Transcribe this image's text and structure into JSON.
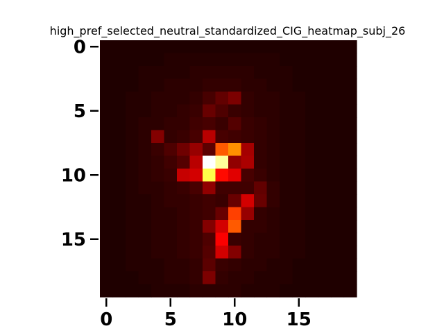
{
  "chart_data": {
    "type": "heatmap",
    "title": "high_pref_selected_neutral_standardized_CIG_heatmap_subj_26",
    "xlabel": "",
    "ylabel": "",
    "colormap": "hot",
    "vmin": 0,
    "vmax": 1,
    "xlim": [
      -0.5,
      19.5
    ],
    "ylim": [
      19.5,
      -0.5
    ],
    "x_ticks": [
      0,
      5,
      10,
      15
    ],
    "y_ticks": [
      0,
      5,
      10,
      15
    ],
    "rows": 20,
    "cols": 20,
    "background_value": 0.04,
    "values": [
      [
        0.03,
        0.03,
        0.03,
        0.03,
        0.03,
        0.03,
        0.03,
        0.03,
        0.03,
        0.03,
        0.03,
        0.03,
        0.03,
        0.03,
        0.03,
        0.03,
        0.03,
        0.03,
        0.03,
        0.03
      ],
      [
        0.03,
        0.03,
        0.03,
        0.03,
        0.03,
        0.04,
        0.04,
        0.04,
        0.04,
        0.04,
        0.04,
        0.04,
        0.04,
        0.04,
        0.03,
        0.03,
        0.03,
        0.03,
        0.03,
        0.03
      ],
      [
        0.03,
        0.03,
        0.03,
        0.04,
        0.04,
        0.04,
        0.04,
        0.05,
        0.05,
        0.05,
        0.05,
        0.05,
        0.04,
        0.04,
        0.04,
        0.03,
        0.03,
        0.03,
        0.03,
        0.03
      ],
      [
        0.03,
        0.03,
        0.03,
        0.04,
        0.04,
        0.05,
        0.05,
        0.05,
        0.06,
        0.06,
        0.06,
        0.05,
        0.05,
        0.04,
        0.04,
        0.03,
        0.03,
        0.03,
        0.03,
        0.03
      ],
      [
        0.03,
        0.03,
        0.04,
        0.04,
        0.05,
        0.05,
        0.05,
        0.06,
        0.09,
        0.13,
        0.17,
        0.06,
        0.05,
        0.05,
        0.04,
        0.04,
        0.03,
        0.03,
        0.03,
        0.03
      ],
      [
        0.03,
        0.03,
        0.04,
        0.04,
        0.05,
        0.05,
        0.06,
        0.07,
        0.14,
        0.1,
        0.07,
        0.06,
        0.05,
        0.05,
        0.04,
        0.04,
        0.03,
        0.03,
        0.03,
        0.03
      ],
      [
        0.03,
        0.03,
        0.04,
        0.05,
        0.05,
        0.06,
        0.06,
        0.08,
        0.09,
        0.07,
        0.11,
        0.07,
        0.06,
        0.05,
        0.04,
        0.04,
        0.03,
        0.03,
        0.03,
        0.03
      ],
      [
        0.03,
        0.03,
        0.04,
        0.05,
        0.18,
        0.06,
        0.07,
        0.09,
        0.26,
        0.09,
        0.08,
        0.07,
        0.06,
        0.05,
        0.04,
        0.04,
        0.03,
        0.03,
        0.03,
        0.03
      ],
      [
        0.03,
        0.03,
        0.04,
        0.05,
        0.07,
        0.1,
        0.15,
        0.21,
        0.12,
        0.5,
        0.58,
        0.23,
        0.06,
        0.05,
        0.04,
        0.04,
        0.03,
        0.03,
        0.03,
        0.03
      ],
      [
        0.03,
        0.03,
        0.04,
        0.05,
        0.06,
        0.08,
        0.11,
        0.26,
        1.0,
        0.9,
        0.2,
        0.24,
        0.06,
        0.05,
        0.04,
        0.04,
        0.03,
        0.03,
        0.03,
        0.03
      ],
      [
        0.03,
        0.03,
        0.04,
        0.05,
        0.06,
        0.07,
        0.28,
        0.3,
        0.82,
        0.38,
        0.32,
        0.09,
        0.07,
        0.05,
        0.04,
        0.04,
        0.03,
        0.03,
        0.03,
        0.03
      ],
      [
        0.03,
        0.03,
        0.04,
        0.05,
        0.05,
        0.06,
        0.07,
        0.09,
        0.2,
        0.08,
        0.08,
        0.08,
        0.13,
        0.06,
        0.04,
        0.04,
        0.03,
        0.03,
        0.03,
        0.03
      ],
      [
        0.03,
        0.03,
        0.04,
        0.04,
        0.05,
        0.06,
        0.06,
        0.07,
        0.08,
        0.07,
        0.14,
        0.3,
        0.14,
        0.06,
        0.04,
        0.04,
        0.03,
        0.03,
        0.03,
        0.03
      ],
      [
        0.03,
        0.03,
        0.04,
        0.04,
        0.05,
        0.05,
        0.06,
        0.07,
        0.08,
        0.14,
        0.46,
        0.21,
        0.06,
        0.05,
        0.04,
        0.04,
        0.03,
        0.03,
        0.03,
        0.03
      ],
      [
        0.03,
        0.03,
        0.04,
        0.04,
        0.05,
        0.05,
        0.06,
        0.07,
        0.18,
        0.3,
        0.5,
        0.06,
        0.06,
        0.05,
        0.04,
        0.04,
        0.03,
        0.03,
        0.03,
        0.03
      ],
      [
        0.03,
        0.03,
        0.04,
        0.04,
        0.05,
        0.05,
        0.06,
        0.07,
        0.1,
        0.36,
        0.07,
        0.06,
        0.05,
        0.05,
        0.04,
        0.04,
        0.03,
        0.03,
        0.03,
        0.03
      ],
      [
        0.03,
        0.03,
        0.04,
        0.04,
        0.05,
        0.05,
        0.06,
        0.07,
        0.11,
        0.3,
        0.18,
        0.06,
        0.05,
        0.05,
        0.04,
        0.04,
        0.03,
        0.03,
        0.03,
        0.03
      ],
      [
        0.03,
        0.03,
        0.04,
        0.04,
        0.04,
        0.05,
        0.05,
        0.06,
        0.12,
        0.07,
        0.06,
        0.05,
        0.05,
        0.04,
        0.04,
        0.03,
        0.03,
        0.03,
        0.03,
        0.03
      ],
      [
        0.03,
        0.03,
        0.03,
        0.04,
        0.04,
        0.05,
        0.05,
        0.06,
        0.17,
        0.06,
        0.05,
        0.05,
        0.04,
        0.04,
        0.04,
        0.03,
        0.03,
        0.03,
        0.03,
        0.03
      ],
      [
        0.03,
        0.03,
        0.03,
        0.03,
        0.04,
        0.04,
        0.04,
        0.05,
        0.05,
        0.05,
        0.05,
        0.04,
        0.04,
        0.04,
        0.03,
        0.03,
        0.03,
        0.03,
        0.03,
        0.03
      ]
    ]
  }
}
